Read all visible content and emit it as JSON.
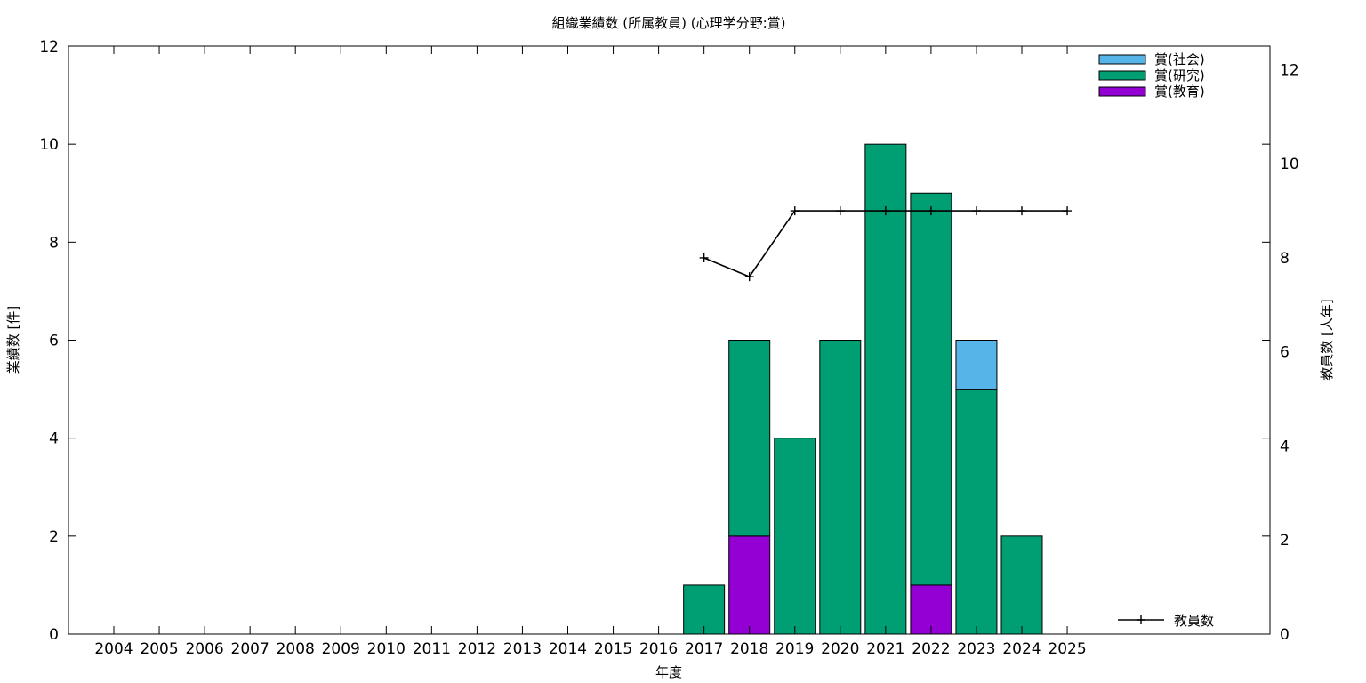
{
  "chart_data": {
    "type": "bar",
    "title": "組織業績数 (所属教員) (心理学分野:賞)",
    "xlabel": "年度",
    "ylabel": "業績数 [件]",
    "y2label": "教員数 [人年]",
    "ylim": [
      0,
      12
    ],
    "y2lim": [
      0,
      12.5
    ],
    "yticks": [
      "0",
      "2",
      "4",
      "6",
      "8",
      "10",
      "12"
    ],
    "y2ticks": [
      "0",
      "2",
      "4",
      "6",
      "8",
      "10",
      "12"
    ],
    "stacked": true,
    "grid": false,
    "legend_position": "top-right",
    "categories": [
      "2004",
      "2005",
      "2006",
      "2007",
      "2008",
      "2009",
      "2010",
      "2011",
      "2012",
      "2013",
      "2014",
      "2015",
      "2016",
      "2017",
      "2018",
      "2019",
      "2020",
      "2021",
      "2022",
      "2023",
      "2024",
      "2025"
    ],
    "series": [
      {
        "name": "賞(教育)",
        "color": "#9400d3",
        "values": [
          0,
          0,
          0,
          0,
          0,
          0,
          0,
          0,
          0,
          0,
          0,
          0,
          0,
          0,
          2,
          0,
          0,
          0,
          1,
          0,
          0,
          0
        ]
      },
      {
        "name": "賞(研究)",
        "color": "#009e73",
        "values": [
          0,
          0,
          0,
          0,
          0,
          0,
          0,
          0,
          0,
          0,
          0,
          0,
          0,
          1,
          4,
          4,
          6,
          10,
          8,
          5,
          2,
          0
        ]
      },
      {
        "name": "賞(社会)",
        "color": "#56b4e9",
        "values": [
          0,
          0,
          0,
          0,
          0,
          0,
          0,
          0,
          0,
          0,
          0,
          0,
          0,
          0,
          0,
          0,
          0,
          0,
          0,
          1,
          0,
          0
        ]
      }
    ],
    "line_series": {
      "name": "教員数",
      "color": "#000000",
      "axis": "y2",
      "x": [
        "2017",
        "2018",
        "2019",
        "2020",
        "2021",
        "2022",
        "2023",
        "2024",
        "2025"
      ],
      "values": [
        8,
        7.6,
        9,
        9,
        9,
        9,
        9,
        9,
        9
      ]
    }
  }
}
